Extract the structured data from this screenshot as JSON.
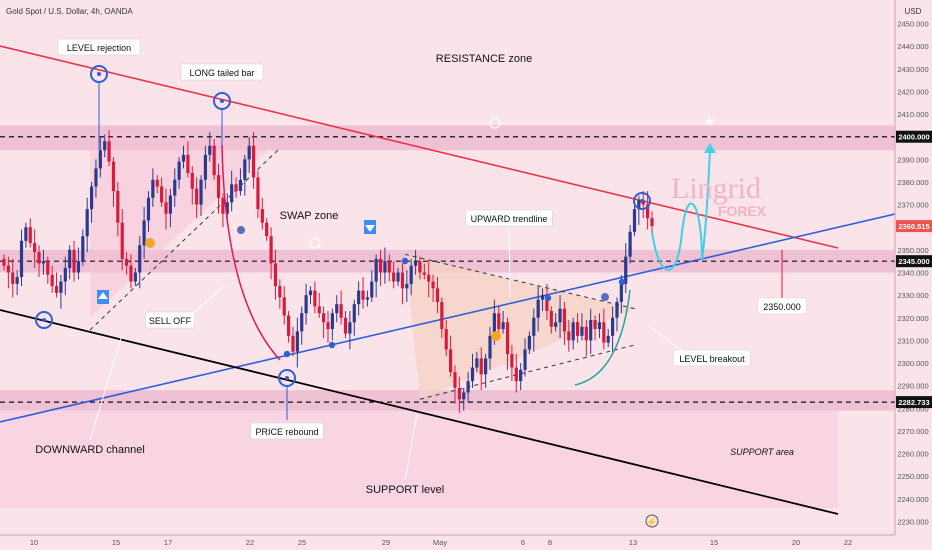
{
  "header": {
    "symbol": "Gold Spot / U.S. Dollar, 4h, OANDA",
    "currency": "USD"
  },
  "watermark": {
    "line1": "Lingrid",
    "line2": "FOREX"
  },
  "colors": {
    "background": "#fbe3ea",
    "zone_band": "#e9b6cd",
    "bull_candle": "#2b3a8f",
    "bear_candle": "#d81b3c",
    "resistance_line": "#e8334a",
    "uptrend_line": "#2f5fd6",
    "channel_line": "#000000",
    "projection": "#3fd0e6"
  },
  "chart_data": {
    "type": "candlestick",
    "title": "Gold Spot / U.S. Dollar, 4h, OANDA",
    "ylabel": "USD",
    "ylim": [
      2224,
      2456
    ],
    "y_ticks": [
      2230,
      2240,
      2250,
      2260,
      2270,
      2280,
      2290,
      2300,
      2310,
      2320,
      2330,
      2340,
      2350,
      2360,
      2370,
      2380,
      2390,
      2400,
      2410,
      2420,
      2430,
      2440,
      2450
    ],
    "x_ticks": [
      "10",
      "15",
      "17",
      "22",
      "25",
      "29",
      "May",
      "6",
      "8",
      "13",
      "15",
      "20",
      "22"
    ],
    "current_price": 2360.515,
    "levels": [
      {
        "label": "2400.000",
        "value": 2400
      },
      {
        "label": "2345.000",
        "value": 2345
      },
      {
        "label": "2282.733",
        "value": 2282.733
      }
    ],
    "target": {
      "label": "2350.000",
      "value": 2350
    },
    "closes": [
      2343,
      2340,
      2335,
      2338,
      2354,
      2360,
      2353,
      2349,
      2344,
      2345,
      2339,
      2334,
      2331,
      2336,
      2342,
      2350,
      2340,
      2345,
      2356,
      2368,
      2378,
      2386,
      2394,
      2398,
      2389,
      2376,
      2362,
      2346,
      2343,
      2336,
      2340,
      2352,
      2363,
      2373,
      2381,
      2378,
      2371,
      2366,
      2374,
      2381,
      2389,
      2392,
      2384,
      2377,
      2370,
      2381,
      2392,
      2396,
      2383,
      2373,
      2366,
      2371,
      2379,
      2376,
      2381,
      2390,
      2396,
      2382,
      2368,
      2362,
      2356,
      2344,
      2334,
      2329,
      2321,
      2312,
      2305,
      2314,
      2322,
      2330,
      2332,
      2325,
      2322,
      2318,
      2315,
      2322,
      2326,
      2320,
      2313,
      2318,
      2326,
      2332,
      2328,
      2329,
      2336,
      2346,
      2340,
      2345,
      2340,
      2336,
      2340,
      2333,
      2335,
      2343,
      2345,
      2340,
      2339,
      2336,
      2333,
      2327,
      2315,
      2306,
      2296,
      2289,
      2284,
      2287,
      2292,
      2298,
      2302,
      2295,
      2302,
      2312,
      2322,
      2315,
      2318,
      2304,
      2298,
      2292,
      2297,
      2306,
      2312,
      2320,
      2328,
      2330,
      2323,
      2316,
      2318,
      2324,
      2314,
      2310,
      2318,
      2312,
      2316,
      2310,
      2319,
      2315,
      2318,
      2309,
      2312,
      2320,
      2327,
      2335,
      2347,
      2358,
      2368,
      2372,
      2370,
      2364,
      2360.5
    ],
    "projection_path_desc": "wave up to 2400",
    "annotations": [
      "RESISTANCE zone",
      "SWAP zone",
      "SUPPORT area",
      "SUPPORT level",
      "DOWNWARD channel",
      "LEVEL rejection",
      "LONG tailed bar",
      "SELL OFF",
      "PRICE rebound",
      "UPWARD trendline",
      "LEVEL breakout"
    ]
  }
}
